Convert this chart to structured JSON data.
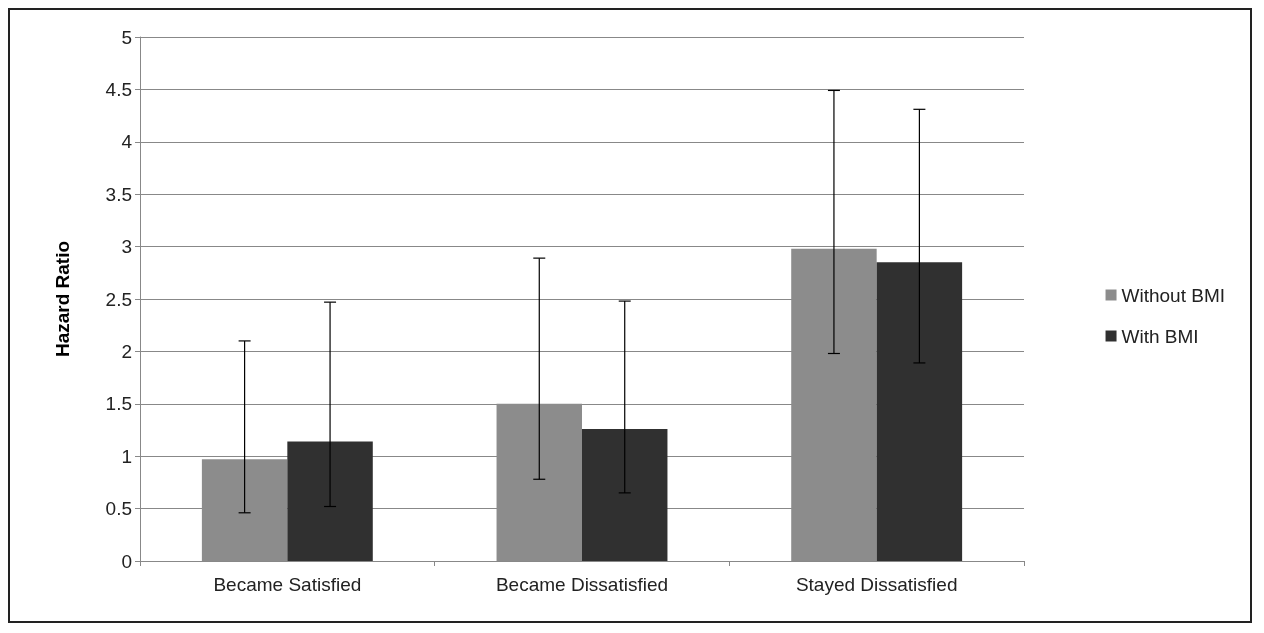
{
  "chart_data": {
    "type": "bar",
    "ylabel": "Hazard Ratio",
    "categories": [
      "Became Satisfied",
      "Became Dissatisfied",
      "Stayed Dissatisfied"
    ],
    "series": [
      {
        "name": "Without BMI",
        "color": "#8c8c8c",
        "values": [
          0.97,
          1.5,
          2.98
        ],
        "errors": [
          [
            0.46,
            2.1
          ],
          [
            0.78,
            2.89
          ],
          [
            1.98,
            4.49
          ]
        ]
      },
      {
        "name": "With BMI",
        "color": "#303030",
        "values": [
          1.14,
          1.26,
          2.85
        ],
        "errors": [
          [
            0.52,
            2.47
          ],
          [
            0.65,
            2.48
          ],
          [
            1.89,
            4.31
          ]
        ]
      }
    ],
    "ylim": [
      0,
      5
    ],
    "yticks": [
      0,
      0.5,
      1,
      1.5,
      2,
      2.5,
      3,
      3.5,
      4,
      4.5,
      5
    ],
    "grid": "y",
    "legend": "right"
  }
}
